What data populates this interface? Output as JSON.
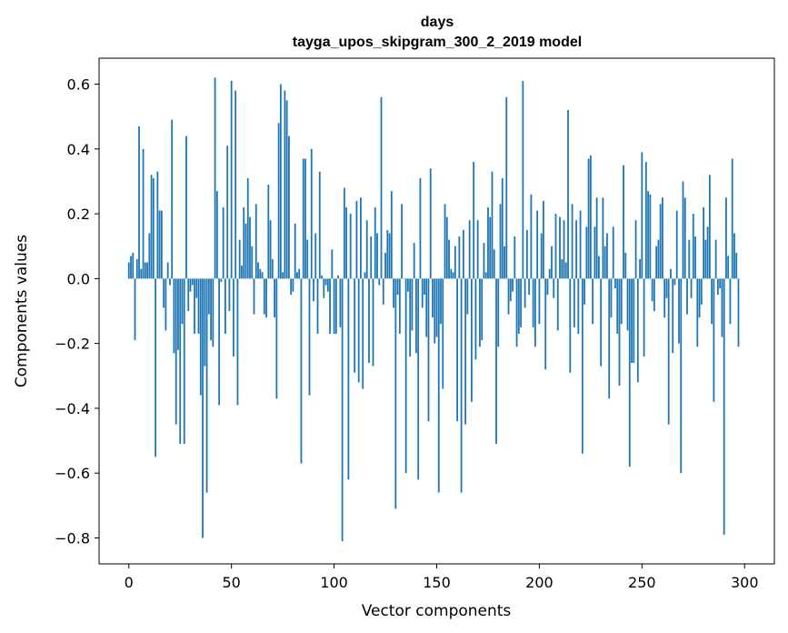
{
  "chart_data": {
    "type": "bar",
    "title": "days",
    "subtitle": "tayga_upos_skipgram_300_2_2019 model",
    "xlabel": "Vector components",
    "ylabel": "Components values",
    "xlim": [
      -14.5,
      314.5
    ],
    "ylim": [
      -0.88,
      0.68
    ],
    "xticks": [
      0,
      50,
      100,
      150,
      200,
      250,
      300
    ],
    "yticks": [
      0.6,
      0.4,
      0.2,
      0.0,
      -0.2,
      -0.4,
      -0.6,
      -0.8
    ],
    "ytick_labels": [
      "0.6",
      "0.4",
      "0.2",
      "0.0",
      "−0.2",
      "−0.4",
      "−0.6",
      "−0.8"
    ],
    "grid": false,
    "bar_color": "#1f77b4",
    "x": "0..299",
    "values": [
      0.05,
      0.07,
      0.08,
      -0.19,
      0.06,
      0.47,
      0.03,
      0.4,
      0.05,
      0.05,
      0.14,
      0.32,
      0.31,
      -0.55,
      0.33,
      0.21,
      0.21,
      -0.09,
      -0.16,
      0.05,
      -0.02,
      0.49,
      -0.23,
      -0.45,
      -0.22,
      -0.51,
      -0.14,
      -0.51,
      0.44,
      -0.1,
      -0.04,
      -0.02,
      -0.17,
      -0.06,
      -0.17,
      -0.36,
      -0.8,
      -0.27,
      -0.66,
      -0.11,
      -0.19,
      -0.21,
      0.62,
      0.27,
      -0.39,
      -0.01,
      0.22,
      -0.17,
      0.41,
      -0.1,
      0.61,
      -0.24,
      0.58,
      -0.39,
      0.12,
      0.04,
      0.22,
      0.17,
      0.31,
      0.19,
      0.1,
      -0.11,
      0.23,
      0.05,
      0.03,
      0.02,
      -0.11,
      -0.12,
      0.29,
      0.18,
      0.06,
      -0.12,
      -0.37,
      0.48,
      0.6,
      0.02,
      0.58,
      0.55,
      0.44,
      -0.05,
      -0.04,
      0.17,
      0.02,
      0.03,
      -0.57,
      0.37,
      0.37,
      0.12,
      -0.36,
      0.4,
      -0.07,
      0.14,
      -0.17,
      0.33,
      0.01,
      -0.06,
      -0.02,
      -0.04,
      -0.17,
      0.09,
      -0.17,
      -0.17,
      0.01,
      -0.15,
      -0.81,
      0.28,
      0.22,
      -0.62,
      0.2,
      0.0,
      -0.29,
      0.24,
      -0.32,
      0.25,
      -0.34,
      0.02,
      0.18,
      -0.26,
      0.13,
      -0.27,
      0.22,
      0.14,
      -0.02,
      0.56,
      -0.08,
      0.08,
      0.15,
      0.14,
      0.27,
      -0.09,
      -0.71,
      -0.05,
      -0.17,
      0.23,
      0.0,
      -0.6,
      -0.04,
      -0.24,
      -0.16,
      0.11,
      -0.23,
      -0.62,
      0.31,
      -0.09,
      -0.05,
      -0.18,
      -0.44,
      0.34,
      -0.12,
      -0.2,
      -0.18,
      -0.66,
      -0.14,
      -0.34,
      0.23,
      0.19,
      0.12,
      0.03,
      0.02,
      0.1,
      -0.44,
      0.13,
      -0.66,
      0.15,
      -0.45,
      -0.11,
      0.18,
      -0.38,
      0.36,
      -0.25,
      0.18,
      -0.21,
      -0.19,
      0.11,
      0.02,
      0.22,
      0.19,
      0.33,
      0.09,
      -0.51,
      -0.21,
      0.23,
      0.31,
      0.1,
      0.56,
      -0.11,
      -0.07,
      -0.04,
      0.13,
      -0.21,
      -0.17,
      -0.15,
      0.61,
      -0.09,
      0.15,
      -0.05,
      0.26,
      -0.15,
      -0.21,
      0.21,
      -0.14,
      0.14,
      0.24,
      -0.28,
      -0.05,
      0.03,
      0.1,
      -0.06,
      0.2,
      -0.16,
      0.19,
      0.06,
      0.18,
      0.05,
      0.52,
      -0.29,
      0.23,
      -0.15,
      0.18,
      -0.17,
      0.21,
      -0.54,
      -0.08,
      0.16,
      0.37,
      0.38,
      -0.14,
      0.16,
      0.25,
      0.07,
      -0.27,
      0.25,
      0.1,
      0.14,
      -0.37,
      -0.12,
      0.16,
      -0.03,
      -0.17,
      -0.33,
      -0.14,
      0.35,
      0.08,
      -0.16,
      -0.58,
      -0.26,
      -0.26,
      0.18,
      -0.32,
      0.06,
      0.39,
      -0.24,
      0.36,
      0.27,
      0.26,
      -0.07,
      -0.1,
      0.1,
      0.12,
      0.23,
      0.25,
      -0.12,
      -0.06,
      -0.45,
      0.03,
      -0.23,
      -0.02,
      0.21,
      -0.2,
      -0.6,
      0.3,
      0.25,
      -0.11,
      0.12,
      -0.06,
      0.2,
      0.13,
      -0.21,
      -0.12,
      -0.08,
      0.22,
      0.12,
      0.16,
      0.32,
      -0.14,
      -0.38,
      0.12,
      -0.05,
      -0.03,
      -0.18,
      -0.79,
      0.25,
      0.07,
      -0.14,
      0.37,
      0.14,
      0.08,
      -0.21
    ]
  }
}
